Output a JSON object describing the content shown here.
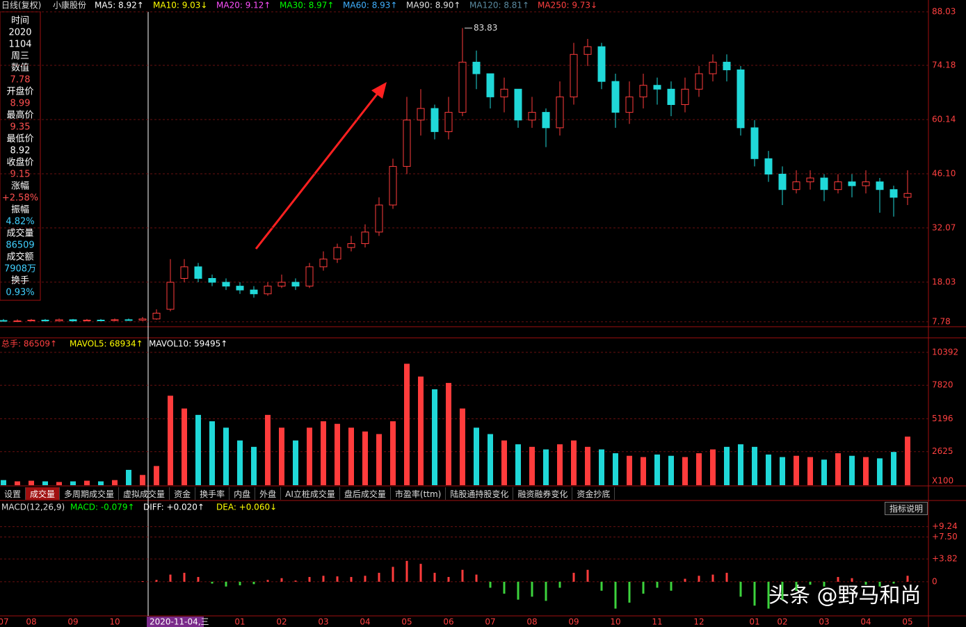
{
  "header": {
    "period": "日线(复权)",
    "stock": "小康股份",
    "ma": [
      {
        "text": "MA5: 8.92↑",
        "color": "#ffffff"
      },
      {
        "text": "MA10: 9.03↓",
        "color": "#ffff00"
      },
      {
        "text": "MA20: 9.12↑",
        "color": "#ff50ff"
      },
      {
        "text": "MA30: 8.97↑",
        "color": "#00ff00"
      },
      {
        "text": "MA60: 8.93↑",
        "color": "#40b0ff"
      },
      {
        "text": "MA90: 8.90↑",
        "color": "#e0e0e0"
      },
      {
        "text": "MA120: 8.81↑",
        "color": "#5a8aa0"
      },
      {
        "text": "MA250: 9.73↓",
        "color": "#ff4040"
      }
    ]
  },
  "info_panel": [
    {
      "text": "时间",
      "color": "#ffffff"
    },
    {
      "text": "2020",
      "color": "#ffffff"
    },
    {
      "text": "1104",
      "color": "#ffffff"
    },
    {
      "text": "周三",
      "color": "#ffffff"
    },
    {
      "text": "数值",
      "color": "#ffffff"
    },
    {
      "text": "7.78",
      "color": "#ff5050"
    },
    {
      "text": "开盘价",
      "color": "#ffffff"
    },
    {
      "text": "8.99",
      "color": "#ff5050"
    },
    {
      "text": "最高价",
      "color": "#ffffff"
    },
    {
      "text": "9.35",
      "color": "#ff5050"
    },
    {
      "text": "最低价",
      "color": "#ffffff"
    },
    {
      "text": "8.92",
      "color": "#ffffff"
    },
    {
      "text": "收盘价",
      "color": "#ffffff"
    },
    {
      "text": "9.15",
      "color": "#ff5050"
    },
    {
      "text": "涨幅",
      "color": "#ffffff"
    },
    {
      "text": "+2.58%",
      "color": "#ff5050"
    },
    {
      "text": "振幅",
      "color": "#ffffff"
    },
    {
      "text": "4.82%",
      "color": "#40d0ff"
    },
    {
      "text": "成交量",
      "color": "#ffffff"
    },
    {
      "text": "86509",
      "color": "#40d0ff"
    },
    {
      "text": "成交额",
      "color": "#ffffff"
    },
    {
      "text": "7908万",
      "color": "#40d0ff"
    },
    {
      "text": "换手",
      "color": "#ffffff"
    },
    {
      "text": "0.93%",
      "color": "#40d0ff"
    }
  ],
  "volume_header": [
    {
      "text": "总手: 86509↑",
      "color": "#ff4040"
    },
    {
      "text": "MAVOL5: 68934↑",
      "color": "#ffff00"
    },
    {
      "text": "MAVOL10: 59495↑",
      "color": "#ffffff"
    }
  ],
  "macd_header": [
    {
      "text": "MACD(12,26,9)",
      "color": "#dddddd"
    },
    {
      "text": "MACD: -0.079↑",
      "color": "#00ff00"
    },
    {
      "text": "DIFF: +0.020↑",
      "color": "#ffffff"
    },
    {
      "text": "DEA: +0.060↓",
      "color": "#ffff00"
    }
  ],
  "tabs": [
    "设置",
    "成交量",
    "多周期成交量",
    "虚拟成交量",
    "资金",
    "换手率",
    "内盘",
    "外盘",
    "AI立桩成交量",
    "盘后成交量",
    "市盈率(ttm)",
    "陆股通持股变化",
    "融资融券变化",
    "资金抄底"
  ],
  "help_button": "指标说明",
  "cursor_label": "2020-11-04,三",
  "watermark": "头条 @野马和尚",
  "chart_data": [
    {
      "type": "candlestick",
      "up_color": "#ff3c3c",
      "down_color": "#20d8d8",
      "grid": true,
      "categories": [
        "07",
        null,
        "08",
        null,
        null,
        "09",
        null,
        null,
        "10",
        null,
        null,
        null,
        null,
        null,
        null,
        null,
        null,
        "01",
        null,
        null,
        "02",
        null,
        null,
        "03",
        null,
        null,
        "04",
        null,
        null,
        "05",
        null,
        null,
        "06",
        null,
        null,
        "07",
        null,
        null,
        "08",
        null,
        null,
        "09",
        null,
        null,
        "10",
        null,
        null,
        "11",
        null,
        null,
        "12",
        null,
        null,
        null,
        "01",
        null,
        "02",
        null,
        null,
        "03",
        null,
        null,
        "04",
        null,
        null,
        "05"
      ],
      "open": [
        8.1,
        8,
        8,
        8.2,
        8,
        8.3,
        8,
        8.2,
        8.1,
        8.3,
        8.2,
        8.5,
        11,
        19,
        22,
        19,
        18,
        17,
        16,
        15,
        17,
        18,
        17,
        22,
        24,
        27,
        28,
        31,
        38,
        48,
        60,
        63,
        57,
        62,
        75,
        72,
        66,
        68,
        60,
        62,
        58,
        66,
        77,
        79,
        70,
        62,
        66,
        69,
        68,
        64,
        68,
        72,
        75,
        73,
        58,
        50,
        46,
        42,
        44,
        45,
        42,
        44,
        43,
        44,
        42,
        40
      ],
      "high": [
        8.5,
        8.4,
        8.5,
        8.5,
        8.6,
        8.5,
        8.5,
        8.5,
        8.6,
        8.6,
        9,
        11,
        24,
        24,
        23,
        20,
        19,
        18,
        17,
        18,
        20,
        19,
        23,
        26,
        28,
        30,
        33,
        40,
        50,
        66,
        68,
        64,
        66,
        83.83,
        78,
        72,
        71,
        68,
        66,
        63,
        70,
        80,
        81,
        80,
        72,
        70,
        72,
        71,
        70,
        71,
        74,
        77,
        77,
        74,
        60,
        52,
        48,
        47,
        47,
        46,
        46,
        46,
        47,
        45,
        43,
        47
      ],
      "low": [
        7.8,
        7.8,
        7.9,
        7.8,
        7.9,
        7.8,
        7.9,
        7.9,
        7.9,
        8,
        8,
        8.3,
        10.5,
        18,
        18,
        17,
        16,
        15,
        14,
        14.5,
        16.5,
        16,
        16.5,
        21,
        23,
        26,
        27,
        30,
        37,
        46,
        56,
        55,
        55,
        61,
        68,
        63,
        62,
        58,
        58,
        53,
        56,
        64,
        74,
        68,
        58,
        59,
        63,
        64,
        61,
        62,
        66,
        70,
        70,
        56,
        48,
        44,
        38,
        41,
        42,
        39,
        41,
        40,
        41,
        36,
        35,
        38
      ],
      "close": [
        8,
        8,
        8.2,
        8,
        8.3,
        8,
        8.2,
        8.1,
        8.3,
        8.2,
        8.5,
        10,
        18,
        22,
        19,
        18,
        17,
        16,
        15,
        17,
        18,
        17,
        22,
        24,
        27,
        28,
        31,
        38,
        48,
        60,
        63,
        57,
        62,
        75,
        72,
        66,
        68,
        60,
        62,
        58,
        66,
        77,
        79,
        70,
        62,
        66,
        69,
        68,
        64,
        68,
        72,
        75,
        73,
        58,
        50,
        46,
        42,
        44,
        45,
        42,
        44,
        43,
        44,
        42,
        40,
        41
      ],
      "ylim": [
        6.49,
        89.29
      ],
      "yticks": [
        88.03,
        74.18,
        60.14,
        {
          "value": 46.1,
          "label": "46.10"
        },
        32.07,
        18.03,
        7.78
      ]
    },
    {
      "type": "bar",
      "unit_label": "X100",
      "up_color": "#ff3c3c",
      "down_color": "#20d8d8",
      "grid": true,
      "values": [
        400,
        300,
        350,
        300,
        250,
        300,
        350,
        300,
        400,
        1200,
        800,
        1500,
        7000,
        6000,
        5500,
        5000,
        4500,
        3500,
        3000,
        5500,
        4500,
        3500,
        4500,
        5000,
        4800,
        4500,
        4200,
        4000,
        5000,
        9500,
        8500,
        7500,
        8000,
        6000,
        4500,
        4000,
        3500,
        3200,
        3000,
        2800,
        3200,
        3500,
        3000,
        2800,
        2500,
        2300,
        2200,
        2400,
        2300,
        2200,
        2500,
        2800,
        3000,
        3200,
        3000,
        2400,
        2200,
        2300,
        2200,
        2000,
        2500,
        2300,
        2200,
        2100,
        2600,
        3800
      ],
      "ylim": [
        0,
        10604
      ],
      "yticks": [
        10392,
        7820,
        5196,
        2625
      ]
    },
    {
      "type": "bar",
      "pos_color": "#ff3c3c",
      "neg_color": "#3cd23c",
      "grid": true,
      "values": [
        0,
        0,
        0,
        0,
        0,
        0,
        0,
        0,
        0,
        0,
        0.1,
        0.3,
        1.2,
        1.5,
        0.8,
        -0.3,
        -0.8,
        -0.6,
        -0.4,
        0.3,
        0.6,
        0.2,
        0.8,
        1.0,
        0.9,
        0.8,
        1.0,
        1.5,
        2.5,
        3.5,
        3.0,
        1.5,
        0.8,
        2.0,
        1.2,
        -1.0,
        -2.0,
        -3.0,
        -2.5,
        -3.2,
        -1.0,
        1.5,
        2.0,
        -1.5,
        -4.5,
        -3.5,
        -2.0,
        -1.0,
        -1.5,
        0.5,
        1.0,
        1.2,
        1.5,
        -2.5,
        -4.0,
        -4.5,
        -3.0,
        -1.5,
        -0.5,
        -0.8,
        0.8,
        0.6,
        -0.5,
        -0.8,
        -0.3,
        1.0
      ],
      "ylim": [
        -5.6,
        11.52
      ],
      "yticks": [
        {
          "value": 9.24,
          "label": "+9.24"
        },
        {
          "value": 7.5,
          "label": "+7.50"
        },
        {
          "value": 3.82,
          "label": "+3.82"
        },
        0
      ]
    }
  ]
}
